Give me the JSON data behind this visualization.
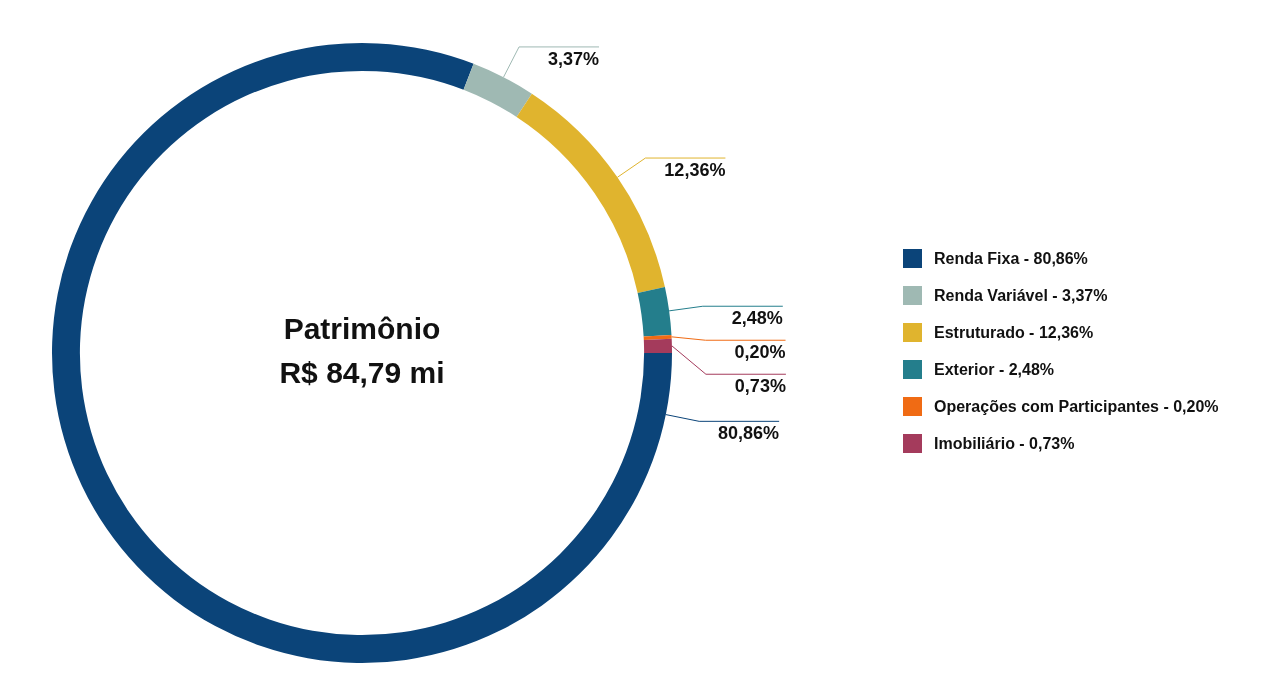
{
  "chart_data": {
    "type": "donut",
    "title": "Patrimônio",
    "subtitle": "R$ 84,79 mi",
    "categories": [
      "Renda Fixa",
      "Renda Variável",
      "Estruturado",
      "Exterior",
      "Operações com Participantes",
      "Imobiliário"
    ],
    "values": [
      80.86,
      3.37,
      12.36,
      2.48,
      0.2,
      0.73
    ],
    "value_labels": [
      "80,86%",
      "3,37%",
      "12,36%",
      "2,48%",
      "0,20%",
      "0,73%"
    ],
    "colors": [
      "#0b4479",
      "#9fb9b3",
      "#e0b42e",
      "#247e8c",
      "#f06b14",
      "#a43b5c"
    ],
    "legend": "right"
  }
}
